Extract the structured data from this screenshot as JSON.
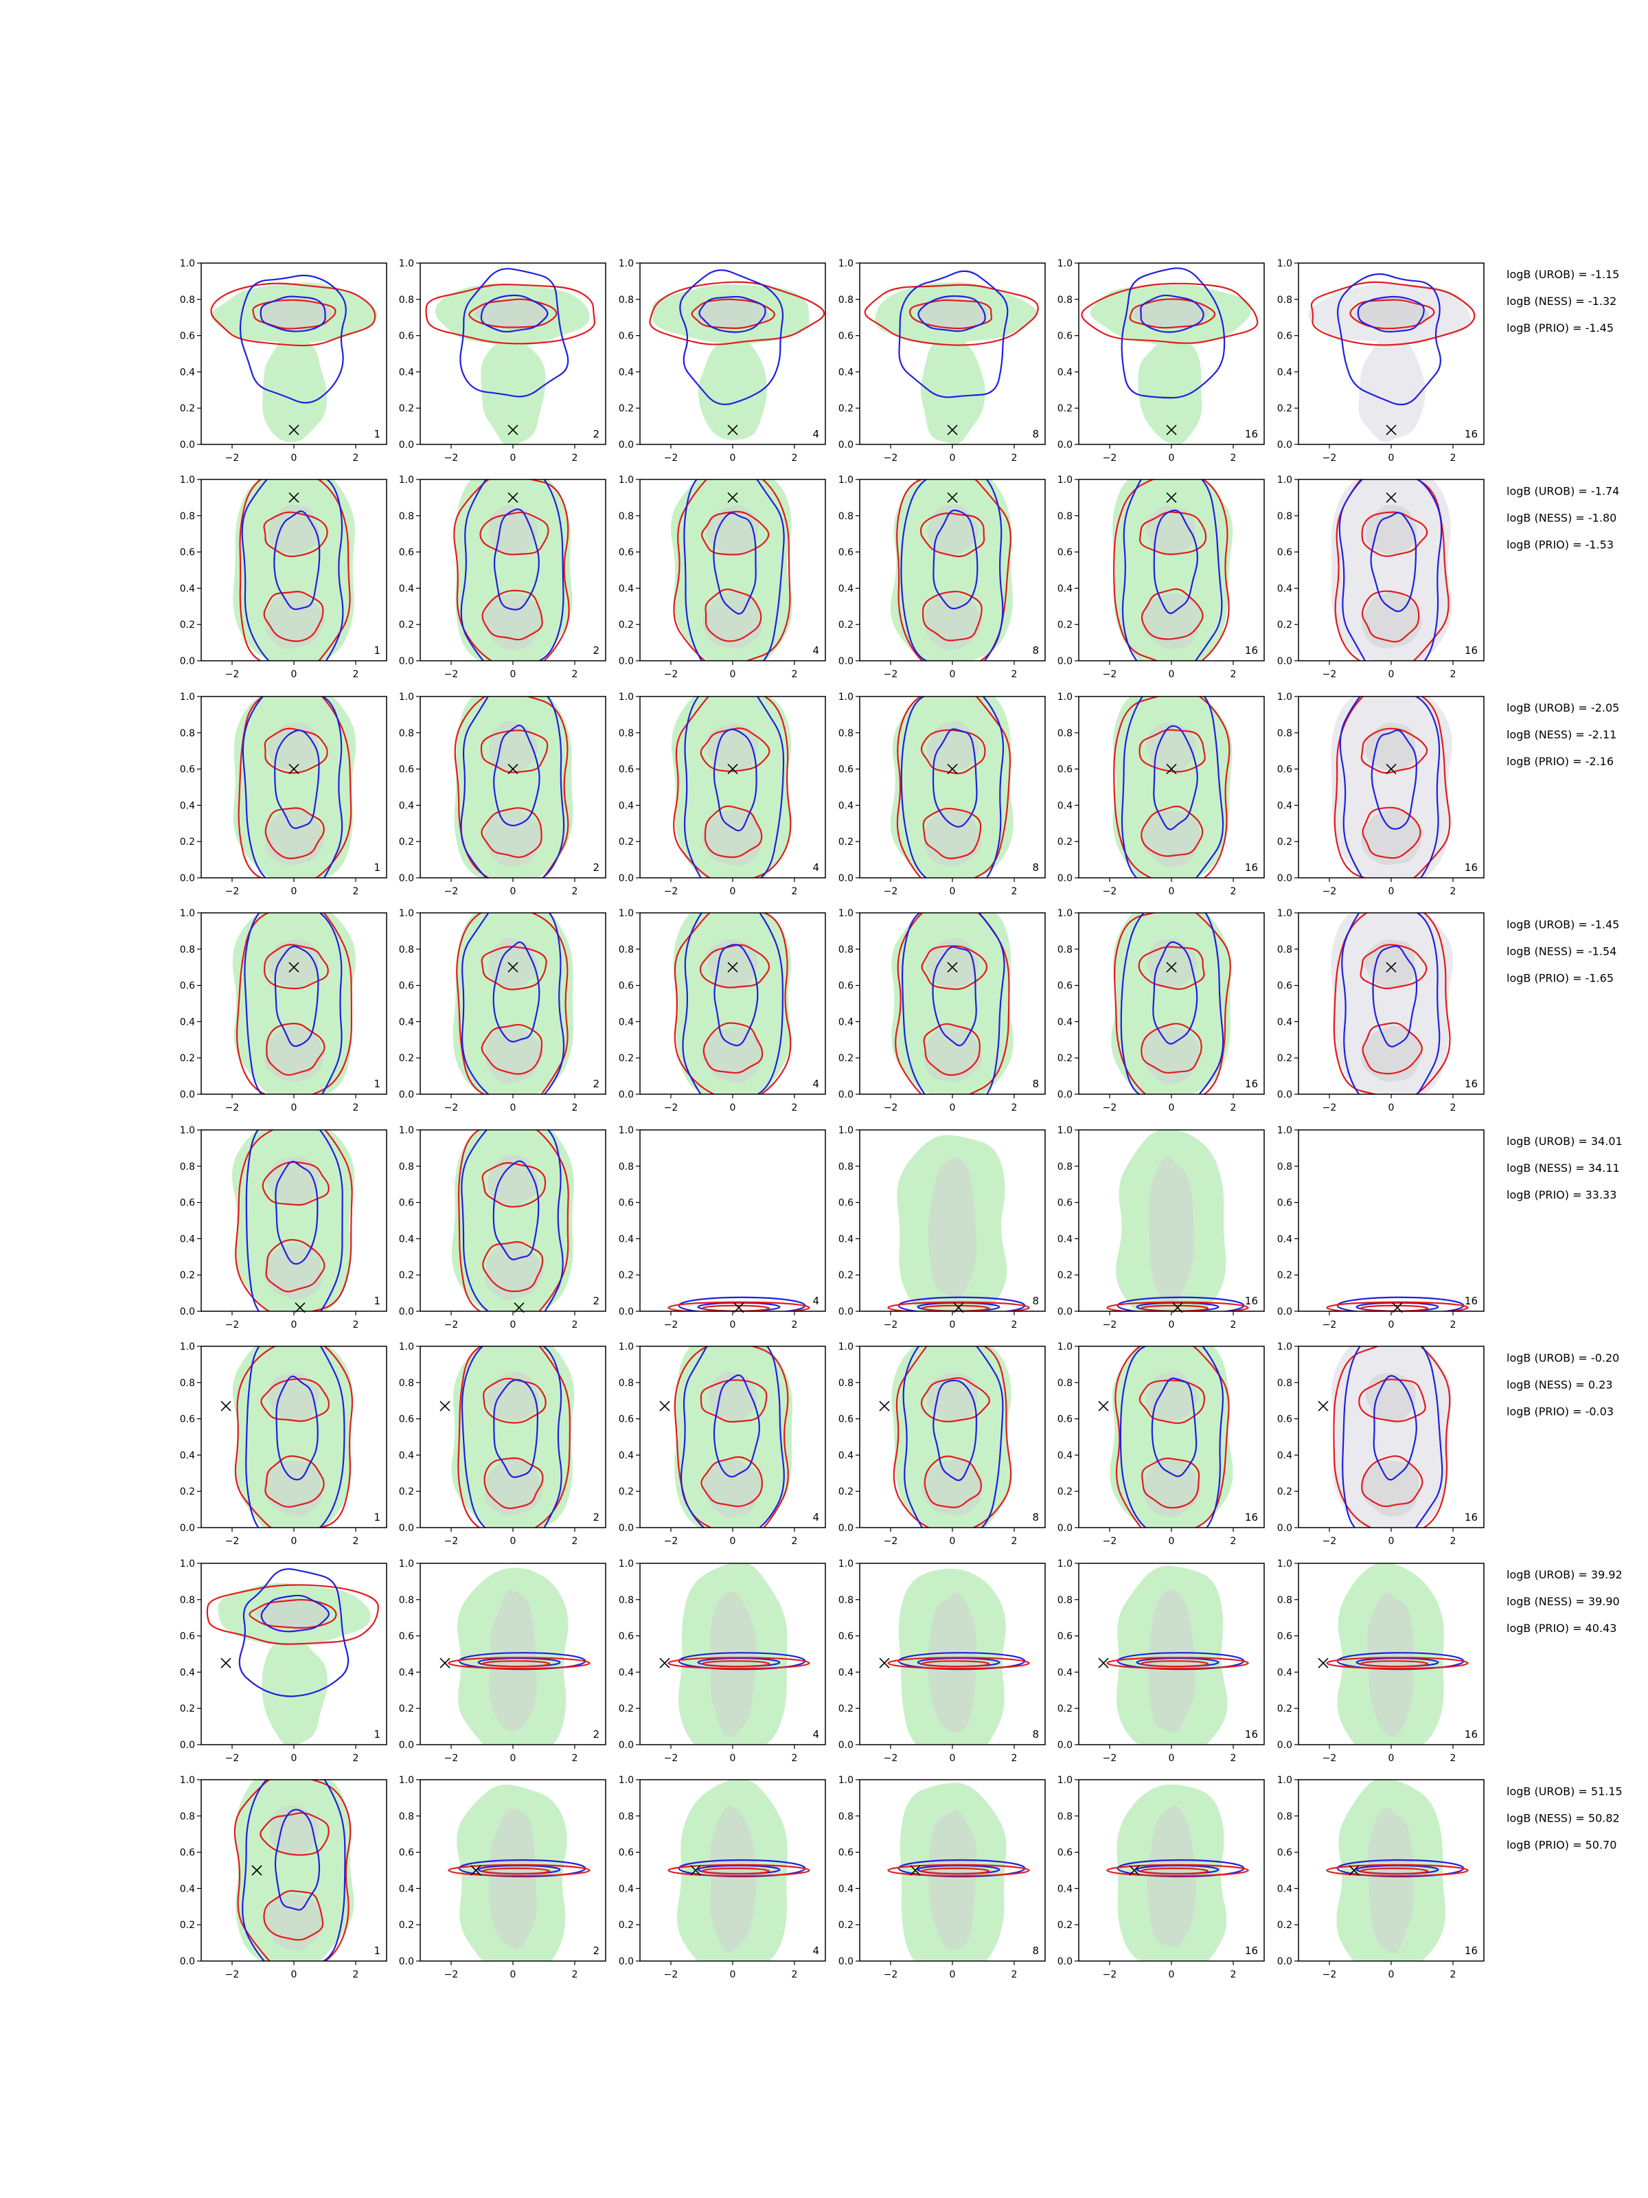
{
  "figure": {
    "x_ticks": [
      "−2",
      "0",
      "2"
    ],
    "y_ticks": [
      "0.0",
      "0.2",
      "0.4",
      "0.6",
      "0.8",
      "1.0"
    ],
    "column_labels": [
      "1",
      "2",
      "4",
      "8",
      "16",
      "16"
    ],
    "colors": {
      "green_fill": "#c7f0c7",
      "grey_fill": "#cfcfcf",
      "light_grey_fill": "#e9e9ee",
      "red_contour": "#e41a1c",
      "blue_contour": "#1f1fe0",
      "marker": "#000000"
    }
  },
  "chart_data": {
    "type": "contour",
    "grid": {
      "rows": 8,
      "cols": 6
    },
    "xlim": [
      -3,
      3
    ],
    "ylim": [
      0,
      1
    ],
    "marker": "x",
    "rows": [
      {
        "marker": [
          0.0,
          0.08
        ],
        "logB": [
          "logB (UROB) = -1.15",
          "logB (NESS) = -1.32",
          "logB (PRIO) = -1.45"
        ],
        "shape": "top",
        "collapse_from": null
      },
      {
        "marker": [
          0.0,
          0.9
        ],
        "logB": [
          "logB (UROB) = -1.74",
          "logB (NESS) = -1.80",
          "logB (PRIO) = -1.53"
        ],
        "shape": "column",
        "collapse_from": null
      },
      {
        "marker": [
          0.0,
          0.6
        ],
        "logB": [
          "logB (UROB) = -2.05",
          "logB (NESS) = -2.11",
          "logB (PRIO) = -2.16"
        ],
        "shape": "column",
        "collapse_from": null
      },
      {
        "marker": [
          0.0,
          0.7
        ],
        "logB": [
          "logB (UROB) = -1.45",
          "logB (NESS) = -1.54",
          "logB (PRIO) = -1.65"
        ],
        "shape": "column",
        "collapse_from": null
      },
      {
        "marker": [
          0.2,
          0.02
        ],
        "logB": [
          "logB (UROB) = 34.01",
          "logB (NESS) = 34.11",
          "logB (PRIO) = 33.33"
        ],
        "shape": "column",
        "collapse_from": 2
      },
      {
        "marker": [
          -2.2,
          0.67
        ],
        "logB": [
          "logB (UROB) = -0.20",
          "logB (NESS) = 0.23",
          "logB (PRIO) = -0.03"
        ],
        "shape": "column",
        "collapse_from": null
      },
      {
        "marker": [
          -2.2,
          0.45
        ],
        "logB": [
          "logB (UROB) = 39.92",
          "logB (NESS) = 39.90",
          "logB (PRIO) = 40.43"
        ],
        "shape": "top",
        "collapse_from": 1
      },
      {
        "marker": [
          -1.2,
          0.5
        ],
        "logB": [
          "logB (UROB) = 51.15",
          "logB (NESS) = 50.82",
          "logB (PRIO) = 50.70"
        ],
        "shape": "column",
        "collapse_from": 1
      }
    ]
  }
}
